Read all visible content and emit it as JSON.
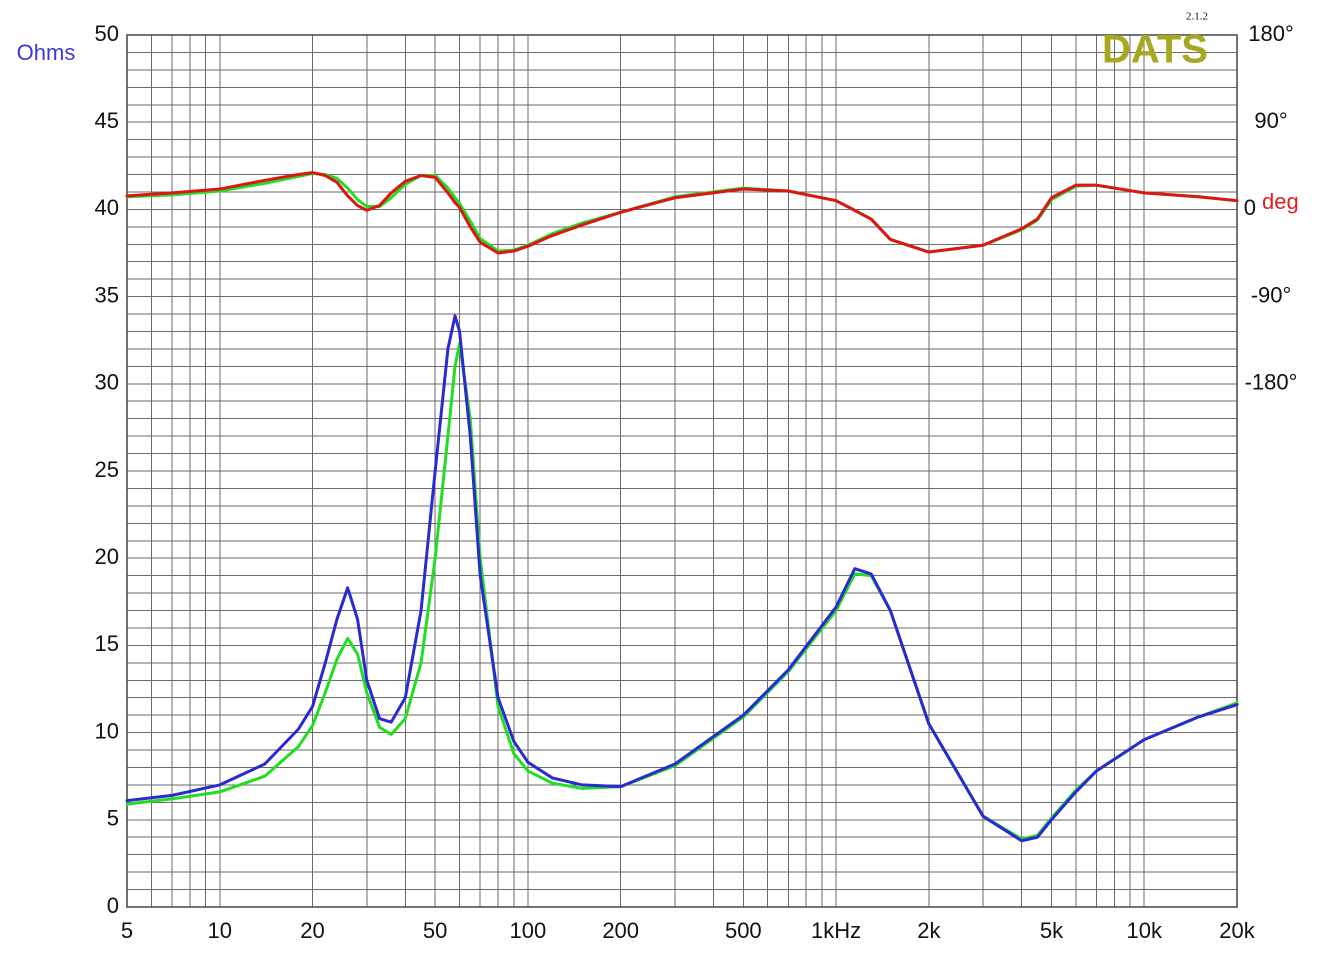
{
  "chart_data": {
    "type": "line",
    "xscale": "log",
    "grid": true,
    "y_label": "Ohms",
    "y_label_color": "#3a3ad0",
    "y2_label": "deg",
    "y2_label_color": "#e02020",
    "logo": "DATS",
    "logo_version": "2.1.2",
    "logo_color": "#a8a820",
    "xlim": [
      5,
      20000
    ],
    "xticks": [
      5,
      10,
      20,
      50,
      100,
      200,
      500,
      {
        "value": 1000,
        "label": "1kHz"
      },
      {
        "value": 2000,
        "label": "2k"
      },
      {
        "value": 5000,
        "label": "5k"
      },
      {
        "value": 10000,
        "label": "10k"
      },
      {
        "value": 20000,
        "label": "20k"
      }
    ],
    "xminorticks": [
      6,
      7,
      8,
      9,
      30,
      40,
      60,
      70,
      80,
      90,
      300,
      400,
      600,
      700,
      800,
      900,
      3000,
      4000,
      6000,
      7000,
      8000,
      9000
    ],
    "ylim": [
      0,
      50
    ],
    "yticks": [
      0,
      5,
      10,
      15,
      20,
      25,
      30,
      35,
      40,
      45,
      50
    ],
    "yminorticks": [
      1,
      2,
      3,
      4,
      6,
      7,
      8,
      9,
      11,
      12,
      13,
      14,
      16,
      17,
      18,
      19,
      21,
      22,
      23,
      24,
      26,
      27,
      28,
      29,
      31,
      32,
      33,
      34,
      36,
      37,
      38,
      39,
      41,
      42,
      43,
      44,
      46,
      47,
      48,
      49
    ],
    "y2lim": [
      -720,
      180
    ],
    "y2ticks": [
      {
        "value": 180,
        "label": "180°"
      },
      {
        "value": 90,
        "label": "90°"
      },
      0,
      {
        "value": -90,
        "label": "-90°"
      },
      {
        "value": -180,
        "label": "-180°"
      }
    ],
    "x": [
      5,
      7,
      10,
      14,
      18,
      20,
      22,
      24,
      26,
      28,
      30,
      33,
      36,
      40,
      45,
      50,
      55,
      58,
      60,
      65,
      70,
      80,
      90,
      100,
      120,
      150,
      200,
      300,
      500,
      700,
      1000,
      1150,
      1300,
      1500,
      2000,
      3000,
      4000,
      4500,
      5000,
      6000,
      7000,
      10000,
      15000,
      20000
    ],
    "series": [
      {
        "color": "#22dd22",
        "values": [
          5.9,
          6.2,
          6.6,
          7.5,
          9.2,
          10.4,
          12.3,
          14.2,
          15.4,
          14.5,
          12.3,
          10.3,
          9.9,
          10.8,
          14,
          20,
          27,
          31,
          32.3,
          28,
          20,
          11.5,
          8.8,
          7.8,
          7.1,
          6.8,
          6.9,
          8.1,
          10.9,
          13.5,
          17,
          19.1,
          19,
          17,
          10.5,
          5.2,
          3.9,
          4.1,
          5.1,
          6.7,
          7.8,
          9.6,
          10.9,
          11.7
        ]
      },
      {
        "color": "#2a2ad0",
        "values": [
          6.1,
          6.4,
          7.0,
          8.2,
          10.2,
          11.5,
          14,
          16.5,
          18.3,
          16.5,
          13,
          10.8,
          10.6,
          12,
          17,
          25,
          32,
          33.9,
          33,
          27,
          19,
          12,
          9.5,
          8.3,
          7.4,
          7.0,
          6.9,
          8.2,
          11,
          13.6,
          17.2,
          19.4,
          19.1,
          17,
          10.5,
          5.2,
          3.8,
          4.0,
          5.0,
          6.6,
          7.8,
          9.6,
          10.9,
          11.6
        ]
      },
      {
        "color": "#22dd22",
        "axis": "y2",
        "values": [
          13,
          15,
          19,
          27,
          34,
          37,
          36,
          32,
          22,
          10,
          3,
          3,
          12,
          26,
          35,
          35,
          22,
          12,
          6,
          -12,
          -30,
          -43,
          -42,
          -37,
          -25,
          -14,
          -3,
          13,
          22,
          19,
          9,
          -1,
          -10,
          -31,
          -44,
          -37,
          -21,
          -11,
          10,
          24,
          25,
          17,
          13,
          9
        ]
      },
      {
        "color": "#dd1515",
        "axis": "y2",
        "values": [
          14,
          17,
          21,
          30,
          36,
          38,
          35,
          28,
          14,
          4,
          -1,
          4,
          17,
          29,
          35,
          33,
          17,
          7,
          2,
          -18,
          -34,
          -45,
          -43,
          -38,
          -27,
          -16,
          -3,
          12,
          21,
          19,
          9,
          -1,
          -10,
          -31,
          -44,
          -37,
          -20,
          -10,
          12,
          25,
          25,
          17,
          13,
          9
        ]
      }
    ]
  }
}
